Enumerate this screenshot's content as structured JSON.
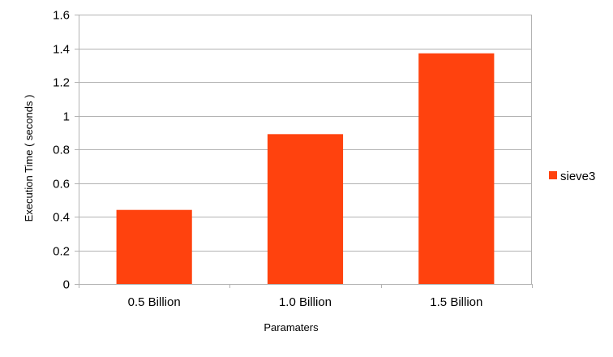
{
  "chart_data": {
    "type": "bar",
    "categories": [
      "0.5 Billion",
      "1.0 Billion",
      "1.5 Billion"
    ],
    "series": [
      {
        "name": "sieve3",
        "values": [
          0.44,
          0.89,
          1.37
        ],
        "color": "#ff420e"
      }
    ],
    "yticks": [
      "0",
      "0.2",
      "0.4",
      "0.6",
      "0.8",
      "1",
      "1.2",
      "1.4",
      "1.6"
    ],
    "xlabel": "Paramaters",
    "ylabel": "Execution Time ( seconds )",
    "ylim": [
      0,
      1.6
    ],
    "grid": true,
    "legend_position": "right"
  }
}
